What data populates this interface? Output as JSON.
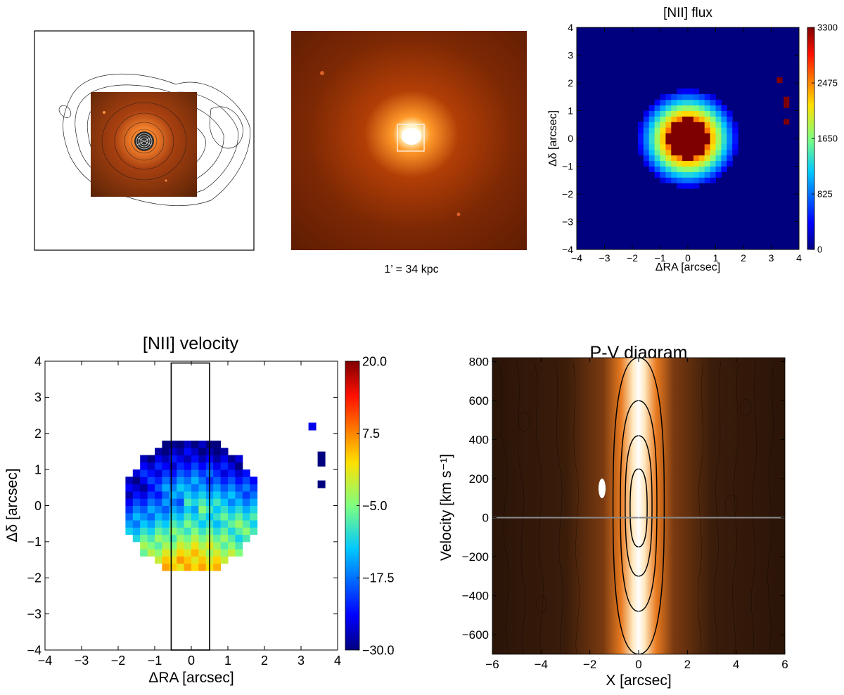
{
  "colors": {
    "jet_low": "#00007f",
    "jet_high": "#7f0000",
    "pv_dark": "#1a0d05",
    "zero_line": "#888888"
  },
  "panel_a": {
    "contour_icon": "x-ray-contours-over-optical-inset"
  },
  "panel_b": {
    "scale_label": "1’ = 34 kpc"
  },
  "chart_data": [
    {
      "id": "nii_flux",
      "type": "heatmap",
      "title": "[NII] flux",
      "xlabel": "ΔRA [arcsec]",
      "ylabel": "Δδ [arcsec]",
      "xlim": [
        -4,
        4
      ],
      "ylim": [
        -4,
        4
      ],
      "xticks": [
        "−4",
        "−3",
        "−2",
        "−1",
        "0",
        "1",
        "2",
        "3",
        "4"
      ],
      "yticks": [
        "−4",
        "−3",
        "−2",
        "−1",
        "0",
        "1",
        "2",
        "3",
        "4"
      ],
      "colorbar": {
        "min": 0,
        "max": 3300,
        "ticks": [
          "0",
          "825",
          "1650",
          "2475",
          "3300"
        ]
      },
      "center": [
        0,
        0
      ],
      "core_radius": 0.75,
      "halo_radius": 1.8,
      "background": 0,
      "peak": 3300,
      "isolated_pixels": [
        [
          3.3,
          2.1,
          3300
        ],
        [
          3.55,
          1.4,
          3300
        ],
        [
          3.55,
          1.2,
          3300
        ],
        [
          3.55,
          0.6,
          3300
        ]
      ]
    },
    {
      "id": "nii_velocity",
      "type": "heatmap",
      "title": "[NII] velocity",
      "xlabel": "ΔRA [arcsec]",
      "ylabel": "Δδ [arcsec]",
      "xlim": [
        -4,
        4
      ],
      "ylim": [
        -4,
        4
      ],
      "xticks": [
        "−4",
        "−3",
        "−2",
        "−1",
        "0",
        "1",
        "2",
        "3",
        "4"
      ],
      "yticks": [
        "−4",
        "−3",
        "−2",
        "−1",
        "0",
        "1",
        "2",
        "3",
        "4"
      ],
      "colorbar": {
        "min": -30,
        "max": 20,
        "ticks": [
          "−30.0",
          "−17.5",
          "−5.0",
          "7.5",
          "20.0"
        ]
      },
      "slit": {
        "x_range": [
          -0.55,
          0.5
        ],
        "y_range": [
          -4,
          3.95
        ]
      },
      "velocity_range": [
        -30,
        12
      ],
      "isolated_pixels": [
        [
          3.3,
          2.2,
          -25
        ],
        [
          3.55,
          1.4,
          -30
        ],
        [
          3.55,
          1.2,
          -30
        ],
        [
          3.55,
          0.6,
          -30
        ]
      ]
    },
    {
      "id": "pv_diagram",
      "type": "heatmap",
      "title": "P-V diagram",
      "xlabel": "X [arcsec]",
      "ylabel": "Velocity [km s⁻¹]",
      "xlim": [
        -6,
        6
      ],
      "ylim": [
        -700,
        820
      ],
      "xticks": [
        "−6",
        "−4",
        "−2",
        "0",
        "2",
        "4",
        "6"
      ],
      "yticks": [
        "−600",
        "−400",
        "−200",
        "0",
        "200",
        "400",
        "600",
        "800"
      ],
      "xtick_values": [
        -6,
        -4,
        -2,
        0,
        2,
        4,
        6
      ],
      "ytick_values": [
        -600,
        -400,
        -200,
        0,
        200,
        400,
        600,
        800
      ],
      "contours": [
        {
          "half_width": 0.35,
          "v_top": 250,
          "v_bottom": -150
        },
        {
          "half_width": 0.55,
          "v_top": 420,
          "v_bottom": -300
        },
        {
          "half_width": 0.75,
          "v_top": 600,
          "v_bottom": -480
        },
        {
          "half_width": 1.05,
          "v_top": 820,
          "v_bottom": -700
        }
      ]
    }
  ]
}
